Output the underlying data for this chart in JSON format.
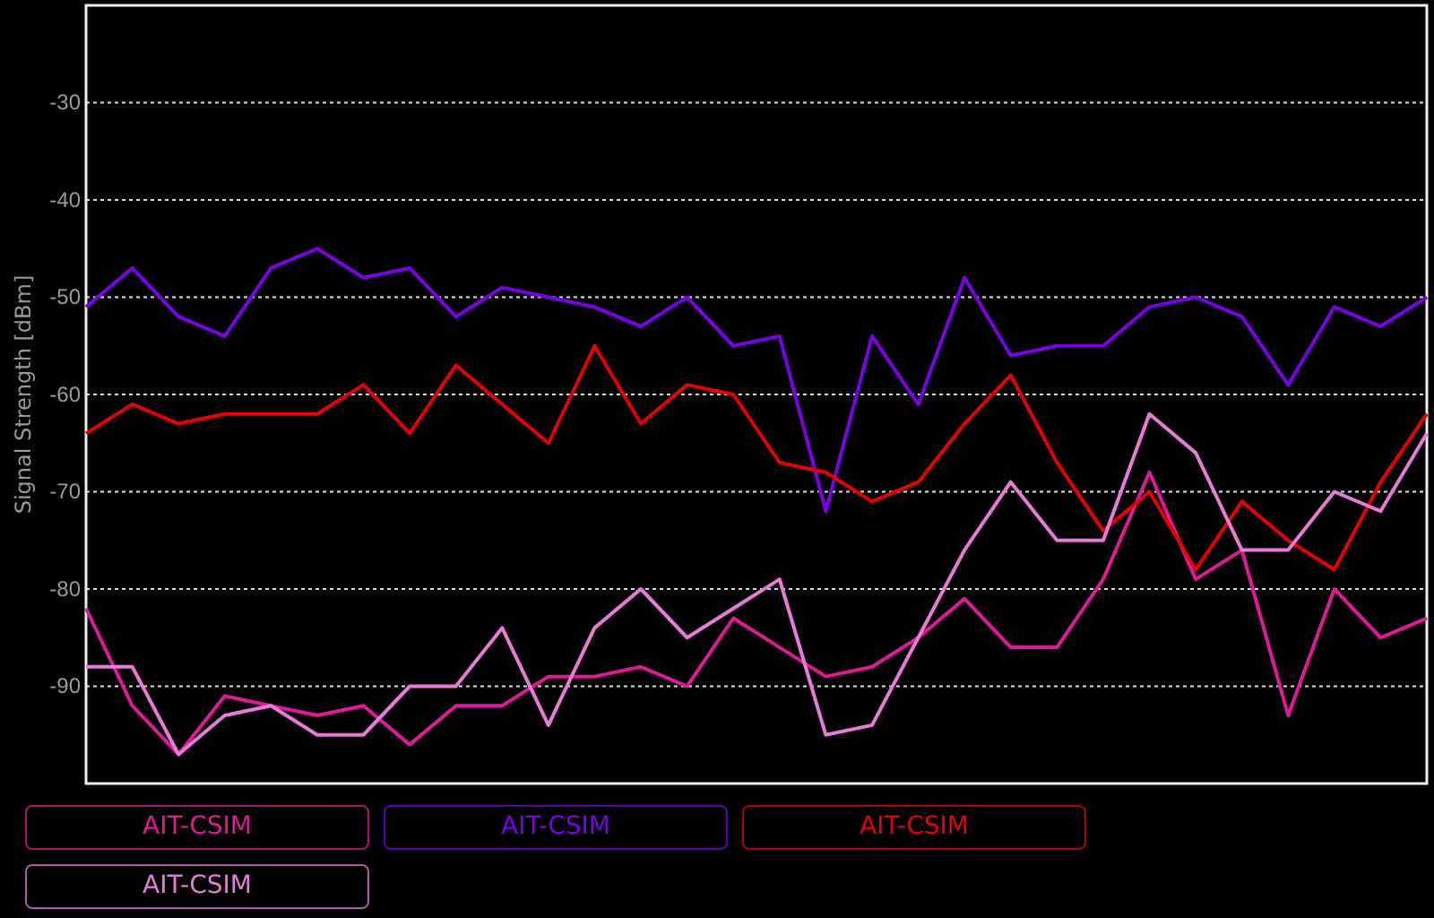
{
  "chart_data": {
    "type": "line",
    "ylabel": "Signal Strength [dBm]",
    "categories": [
      null,
      null,
      null,
      null,
      null,
      null,
      null,
      null,
      null,
      null,
      null,
      null,
      null,
      null,
      null,
      null,
      null,
      null,
      null,
      null,
      null,
      null,
      null,
      null,
      null,
      null,
      null,
      null,
      null,
      null
    ],
    "ylim": [
      -100,
      -20
    ],
    "yticks": [
      -90,
      -80,
      -70,
      -60,
      -50,
      -40,
      -30
    ],
    "grid": "y",
    "legend": "bottom",
    "line_style": "solid",
    "marker": "none",
    "series": [
      {
        "name": "AIT-CSIM",
        "color": "#e0189a",
        "values": [
          -82,
          -92,
          -97,
          -91,
          -92,
          -93,
          -92,
          -96,
          -92,
          -92,
          -89,
          -89,
          -88,
          -90,
          -83,
          -86,
          -89,
          -88,
          -85,
          -81,
          -86,
          -86,
          -79,
          -68,
          -79,
          -76,
          -93,
          -80,
          -85,
          -83
        ]
      },
      {
        "name": "AIT-CSIM",
        "color": "#7a00e6",
        "values": [
          -51,
          -47,
          -52,
          -54,
          -47,
          -45,
          -48,
          -47,
          -52,
          -49,
          -50,
          -51,
          -53,
          -50,
          -55,
          -54,
          -72,
          -54,
          -61,
          -48,
          -56,
          -55,
          -55,
          -51,
          -50,
          -52,
          -59,
          -51,
          -53,
          -50
        ]
      },
      {
        "name": "AIT-CSIM",
        "color": "#e60000",
        "values": [
          -64,
          -61,
          -63,
          -62,
          -62,
          -62,
          -59,
          -64,
          -57,
          -61,
          -65,
          -55,
          -63,
          -59,
          -60,
          -67,
          -68,
          -71,
          -69,
          -63,
          -58,
          -67,
          -74,
          -70,
          -78,
          -71,
          -75,
          -78,
          -69,
          -62
        ]
      },
      {
        "name": "AIT-CSIM",
        "color": "#e87ad8",
        "values": [
          -88,
          -88,
          -97,
          -93,
          -92,
          -95,
          -95,
          -90,
          -90,
          -84,
          -94,
          -84,
          -80,
          -85,
          -82,
          -79,
          -95,
          -94,
          -85,
          -76,
          -69,
          -75,
          -75,
          -62,
          -66,
          -76,
          -76,
          -70,
          -72,
          -64
        ]
      }
    ]
  }
}
